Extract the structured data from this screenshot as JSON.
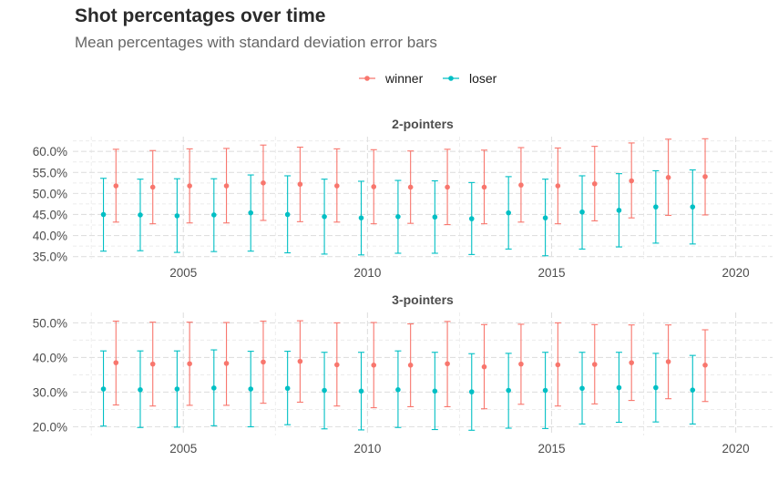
{
  "title": "Shot percentages over time",
  "subtitle": "Mean percentages with standard deviation error bars",
  "chart_data": {
    "type": "scatter",
    "error_bars": "standard deviation",
    "legend": {
      "placement": "top",
      "entries": [
        "winner",
        "loser"
      ]
    },
    "colors": {
      "winner": "#F8766D",
      "loser": "#00BFC4"
    },
    "x_ticks": [
      2005,
      2010,
      2015,
      2020
    ],
    "xlim": [
      2002,
      2021
    ],
    "panels": [
      {
        "title": "2-pointers",
        "ylim": [
          34.5,
          63.5
        ],
        "y_ticks": [
          35,
          40,
          45,
          50,
          55,
          60
        ],
        "y_tick_labels": [
          "35.0%",
          "40.0%",
          "45.0%",
          "50.0%",
          "55.0%",
          "60.0%"
        ],
        "series": [
          {
            "name": "winner",
            "x": [
              2003,
              2004,
              2005,
              2006,
              2007,
              2008,
              2009,
              2010,
              2011,
              2012,
              2013,
              2014,
              2015,
              2016,
              2017,
              2018,
              2019
            ],
            "y": [
              51.8,
              51.5,
              51.8,
              51.8,
              52.5,
              52.2,
              51.8,
              51.6,
              51.5,
              51.5,
              51.5,
              52.0,
              51.8,
              52.3,
              53.0,
              53.8,
              54.0
            ],
            "lower": [
              43.2,
              42.8,
              43.0,
              43.0,
              43.6,
              43.3,
              43.2,
              42.8,
              42.9,
              42.6,
              42.8,
              43.2,
              42.8,
              43.5,
              44.2,
              44.8,
              44.9
            ],
            "upper": [
              60.5,
              60.2,
              60.6,
              60.7,
              61.5,
              61.0,
              60.6,
              60.4,
              60.1,
              60.5,
              60.3,
              60.9,
              60.8,
              61.2,
              62.0,
              62.9,
              63.0
            ]
          },
          {
            "name": "loser",
            "x": [
              2003,
              2004,
              2005,
              2006,
              2007,
              2008,
              2009,
              2010,
              2011,
              2012,
              2013,
              2014,
              2015,
              2016,
              2017,
              2018,
              2019
            ],
            "y": [
              45.0,
              44.9,
              44.7,
              44.9,
              45.4,
              45.0,
              44.5,
              44.2,
              44.5,
              44.4,
              44.0,
              45.4,
              44.2,
              45.6,
              46.0,
              46.8,
              46.8
            ],
            "lower": [
              36.3,
              36.4,
              36.0,
              36.2,
              36.3,
              35.9,
              35.6,
              35.4,
              35.8,
              35.8,
              35.5,
              36.8,
              35.2,
              36.8,
              37.3,
              38.2,
              38.0
            ],
            "upper": [
              53.6,
              53.4,
              53.5,
              53.5,
              54.4,
              54.2,
              53.4,
              52.9,
              53.1,
              53.0,
              52.6,
              54.0,
              53.4,
              54.2,
              54.7,
              55.4,
              55.6
            ]
          }
        ]
      },
      {
        "title": "3-pointers",
        "ylim": [
          17.5,
          53
        ],
        "y_ticks": [
          20,
          30,
          40,
          50
        ],
        "y_tick_labels": [
          "20.0%",
          "30.0%",
          "40.0%",
          "50.0%"
        ],
        "series": [
          {
            "name": "winner",
            "x": [
              2003,
              2004,
              2005,
              2006,
              2007,
              2008,
              2009,
              2010,
              2011,
              2012,
              2013,
              2014,
              2015,
              2016,
              2017,
              2018,
              2019
            ],
            "y": [
              38.5,
              38.1,
              38.2,
              38.3,
              38.7,
              38.9,
              37.9,
              37.8,
              37.8,
              38.2,
              37.3,
              38.1,
              37.9,
              38.0,
              38.5,
              38.8,
              37.8
            ],
            "lower": [
              26.3,
              26.0,
              26.2,
              26.2,
              26.8,
              27.1,
              26.0,
              25.5,
              25.8,
              25.8,
              25.2,
              26.5,
              26.0,
              26.6,
              27.6,
              28.1,
              27.3
            ],
            "upper": [
              50.5,
              50.2,
              50.2,
              50.1,
              50.5,
              50.6,
              50.0,
              50.1,
              49.7,
              50.4,
              49.5,
              49.6,
              50.0,
              49.5,
              49.4,
              49.4,
              48.0
            ]
          },
          {
            "name": "loser",
            "x": [
              2003,
              2004,
              2005,
              2006,
              2007,
              2008,
              2009,
              2010,
              2011,
              2012,
              2013,
              2014,
              2015,
              2016,
              2017,
              2018,
              2019
            ],
            "y": [
              30.9,
              30.7,
              30.9,
              31.2,
              30.9,
              31.1,
              30.5,
              30.3,
              30.7,
              30.3,
              30.1,
              30.5,
              30.5,
              31.1,
              31.3,
              31.3,
              30.6
            ],
            "lower": [
              20.2,
              19.8,
              19.9,
              20.3,
              20.0,
              20.6,
              19.4,
              19.1,
              19.8,
              19.2,
              19.0,
              19.6,
              19.5,
              20.8,
              21.3,
              21.4,
              20.8
            ],
            "upper": [
              41.9,
              41.9,
              41.9,
              42.2,
              41.8,
              41.8,
              41.5,
              41.5,
              41.9,
              41.5,
              41.1,
              41.2,
              41.5,
              41.5,
              41.5,
              41.2,
              40.6
            ]
          }
        ]
      }
    ]
  }
}
